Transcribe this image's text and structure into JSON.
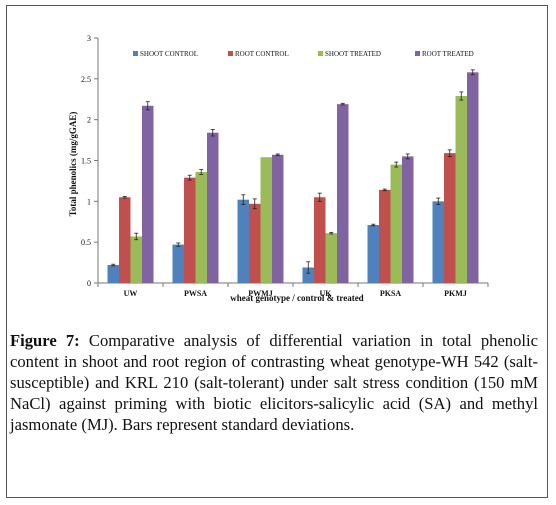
{
  "figure": {
    "label": "Figure 7:",
    "text": "Comparative analysis of differential variation in total phenolic content in shoot and root region of contrasting wheat genotype-WH 542 (salt-susceptible) and KRL 210 (salt-tolerant) under salt stress condition (150 mM NaCl) against priming with biotic elicitors-salicylic acid (SA) and methyl jasmonate (MJ). Bars represent standard deviations."
  },
  "chart_data": {
    "type": "bar",
    "title": "",
    "xlabel": "wheat genotype / control & treated",
    "ylabel": "Total phenolics (mg/gGAE)",
    "ylim": [
      0,
      3
    ],
    "yticks": [
      "0",
      "0.5",
      "1",
      "1.5",
      "2",
      "2.5",
      "3"
    ],
    "categories": [
      "UW",
      "PWSA",
      "PWMJ",
      "UK",
      "PKSA",
      "PKMJ"
    ],
    "legend_position": "top",
    "grid": false,
    "series": [
      {
        "name": "SHOOT CONTROL",
        "color": "#4F81BD",
        "values": [
          0.22,
          0.47,
          1.02,
          0.19,
          0.71,
          1.0
        ],
        "errors": [
          0.01,
          0.02,
          0.06,
          0.07,
          0.01,
          0.04
        ]
      },
      {
        "name": "ROOT CONTROL",
        "color": "#C0504D",
        "values": [
          1.05,
          1.29,
          0.97,
          1.05,
          1.14,
          1.59
        ],
        "errors": [
          0.01,
          0.03,
          0.06,
          0.05,
          0.01,
          0.04
        ]
      },
      {
        "name": "SHOOT TREATED",
        "color": "#9BBB59",
        "values": [
          0.57,
          1.36,
          1.54,
          0.61,
          1.45,
          2.29
        ],
        "errors": [
          0.04,
          0.03,
          0.0,
          0.01,
          0.03,
          0.05
        ]
      },
      {
        "name": "ROOT TREATED",
        "color": "#8064A2",
        "values": [
          2.17,
          1.84,
          1.57,
          2.19,
          1.55,
          2.58
        ],
        "errors": [
          0.05,
          0.04,
          0.01,
          0.01,
          0.03,
          0.03
        ]
      }
    ]
  }
}
